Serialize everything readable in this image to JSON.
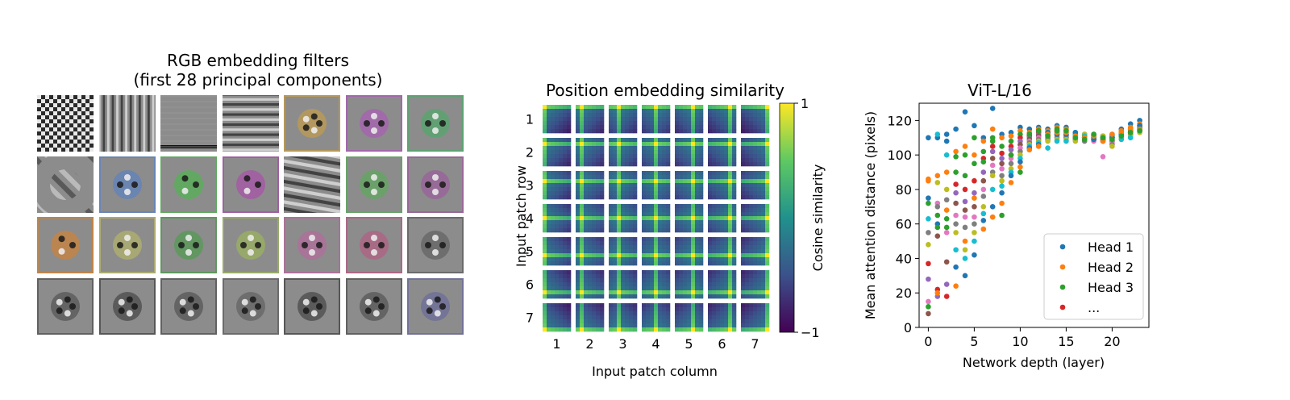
{
  "panel1": {
    "title_line1": "RGB embedding filters",
    "title_line2": "(first 28 principal components)",
    "grid": {
      "rows": 4,
      "cols": 7
    }
  },
  "panel2": {
    "title": "Position embedding similarity",
    "xlabel": "Input patch column",
    "ylabel": "Input patch row",
    "ticks": [
      "1",
      "2",
      "3",
      "4",
      "5",
      "6",
      "7"
    ],
    "colorbar": {
      "label": "Cosine similarity",
      "max_label": "1",
      "min_label": "−1",
      "colormap": "viridis"
    }
  },
  "chart_data": [
    {
      "type": "heatmap",
      "title": "Position embedding similarity",
      "xlabel": "Input patch column",
      "ylabel": "Input patch row",
      "rows": 7,
      "cols": 7,
      "value_range": [
        -1,
        1
      ]
    },
    {
      "type": "scatter",
      "title": "ViT-L/16",
      "xlabel": "Network depth (layer)",
      "ylabel": "Mean attention distance (pixels)",
      "xlim": [
        -1,
        24
      ],
      "ylim": [
        0,
        130
      ],
      "xticks": [
        0,
        5,
        10,
        15,
        20
      ],
      "yticks": [
        0,
        20,
        40,
        60,
        80,
        100,
        120
      ],
      "legend": {
        "position": "bottom-right",
        "entries": [
          "Head 1",
          "Head 2",
          "Head 3",
          "..."
        ]
      },
      "colors": [
        "#1f77b4",
        "#ff7f0e",
        "#2ca02c",
        "#d62728",
        "#9467bd",
        "#8c564b",
        "#e377c2",
        "#7f7f7f",
        "#bcbd22",
        "#17becf"
      ],
      "layers": [
        {
          "x": 0,
          "y": [
            110,
            86,
            72,
            37,
            28,
            8,
            15,
            55,
            48,
            63,
            75,
            85,
            12
          ]
        },
        {
          "x": 1,
          "y": [
            110,
            88,
            65,
            22,
            18,
            53,
            72,
            70,
            84,
            112,
            60,
            20,
            58
          ]
        },
        {
          "x": 2,
          "y": [
            112,
            90,
            63,
            18,
            25,
            38,
            55,
            74,
            80,
            100,
            108,
            68,
            58
          ]
        },
        {
          "x": 3,
          "y": [
            115,
            102,
            99,
            83,
            78,
            72,
            65,
            60,
            55,
            45,
            35,
            24,
            90
          ]
        },
        {
          "x": 4,
          "y": [
            125,
            105,
            100,
            80,
            73,
            68,
            64,
            58,
            45,
            40,
            30,
            50,
            88
          ]
        },
        {
          "x": 5,
          "y": [
            117,
            100,
            95,
            85,
            78,
            70,
            64,
            60,
            55,
            50,
            42,
            75,
            110
          ]
        },
        {
          "x": 6,
          "y": [
            110,
            108,
            102,
            98,
            90,
            85,
            80,
            76,
            70,
            66,
            62,
            57,
            96
          ]
        },
        {
          "x": 7,
          "y": [
            127,
            115,
            110,
            105,
            102,
            98,
            94,
            90,
            88,
            80,
            70,
            64,
            108
          ]
        },
        {
          "x": 8,
          "y": [
            112,
            110,
            105,
            101,
            98,
            95,
            92,
            88,
            85,
            82,
            78,
            72,
            65
          ]
        },
        {
          "x": 9,
          "y": [
            113,
            111,
            108,
            105,
            103,
            100,
            98,
            95,
            92,
            90,
            88,
            84,
            100
          ]
        },
        {
          "x": 10,
          "y": [
            116,
            114,
            112,
            110,
            108,
            106,
            104,
            102,
            100,
            98,
            96,
            93,
            90
          ]
        },
        {
          "x": 11,
          "y": [
            115,
            113,
            112,
            111,
            110,
            109,
            108,
            107,
            106,
            105,
            104,
            103,
            112
          ]
        },
        {
          "x": 12,
          "y": [
            116,
            115,
            114,
            113,
            112,
            111,
            110,
            109,
            108,
            107,
            106,
            105,
            114
          ]
        },
        {
          "x": 13,
          "y": [
            115,
            114,
            113,
            112,
            111,
            110,
            110,
            109,
            108,
            104,
            113,
            112,
            111
          ]
        },
        {
          "x": 14,
          "y": [
            117,
            116,
            115,
            114,
            113,
            112,
            111,
            110,
            109,
            108,
            112,
            113,
            114
          ]
        },
        {
          "x": 15,
          "y": [
            116,
            115,
            114,
            113,
            112,
            111,
            110,
            110,
            109,
            108,
            112,
            113,
            114
          ]
        },
        {
          "x": 16,
          "y": [
            113,
            112,
            111,
            111,
            110,
            110,
            109,
            109,
            108,
            112,
            113,
            111,
            110
          ]
        },
        {
          "x": 17,
          "y": [
            112,
            111,
            111,
            110,
            110,
            109,
            109,
            108,
            112,
            111,
            110,
            110,
            109
          ]
        },
        {
          "x": 18,
          "y": [
            112,
            111,
            110,
            110,
            109,
            109,
            108,
            111,
            110,
            110,
            109,
            111,
            112
          ]
        },
        {
          "x": 19,
          "y": [
            111,
            110,
            110,
            109,
            109,
            108,
            99,
            110,
            111,
            110,
            109,
            108,
            110
          ]
        },
        {
          "x": 20,
          "y": [
            112,
            111,
            110,
            110,
            109,
            108,
            107,
            106,
            105,
            111,
            110,
            112,
            109
          ]
        },
        {
          "x": 21,
          "y": [
            115,
            114,
            113,
            112,
            112,
            111,
            111,
            110,
            110,
            109,
            112,
            113,
            111
          ]
        },
        {
          "x": 22,
          "y": [
            118,
            116,
            115,
            114,
            113,
            113,
            112,
            112,
            111,
            110,
            114,
            115,
            113
          ]
        },
        {
          "x": 23,
          "y": [
            120,
            118,
            117,
            116,
            115,
            115,
            114,
            114,
            113,
            116,
            117,
            115,
            114
          ]
        }
      ]
    }
  ]
}
